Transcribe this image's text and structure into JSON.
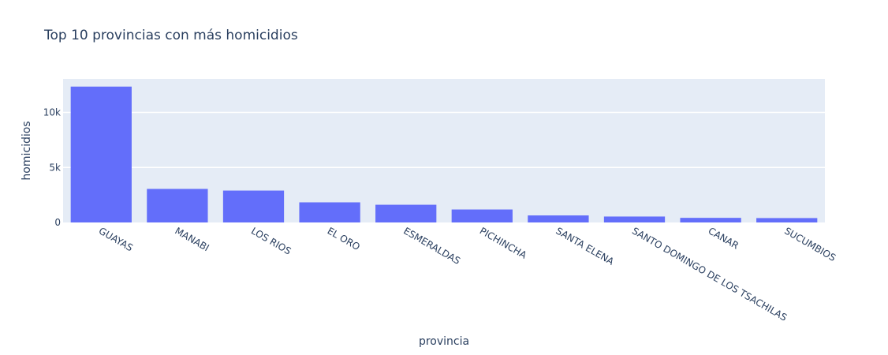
{
  "chart_data": {
    "type": "bar",
    "title": "Top 10 provincias con más homicidios",
    "xlabel": "provincia",
    "ylabel": "homicidios",
    "categories": [
      "GUAYAS",
      "MANABI",
      "LOS RIOS",
      "EL ORO",
      "ESMERALDAS",
      "PICHINCHA",
      "SANTA ELENA",
      "SANTO DOMINGO DE LOS TSACHILAS",
      "CANAR",
      "SUCUMBIOS"
    ],
    "values": [
      12350,
      3050,
      2900,
      1830,
      1610,
      1180,
      640,
      540,
      420,
      400
    ],
    "ylim": [
      0,
      13050
    ],
    "yticks": [
      0,
      5000,
      10000
    ],
    "ytick_labels": [
      "0",
      "5k",
      "10k"
    ],
    "grid": true,
    "colors": {
      "bar": "#636efa",
      "plot_bg": "#e5ecf6",
      "grid": "#ffffff",
      "text": "#2a3f5f"
    }
  }
}
